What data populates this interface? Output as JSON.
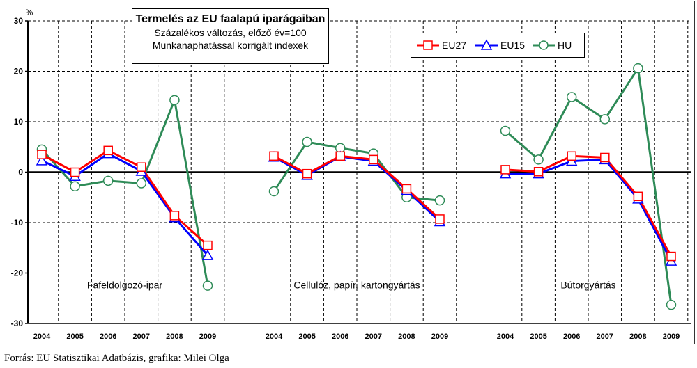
{
  "chart_data": {
    "type": "line",
    "title": "Termelés az EU faalapú iparágaiban",
    "subtitle": [
      "Százalékos változás, előző év=100",
      "Munkanaphatással korrigált indexek"
    ],
    "ylabel": "%",
    "ylim": [
      -30,
      30
    ],
    "yticks": [
      30,
      20,
      10,
      0,
      -10,
      -20,
      -30
    ],
    "grid": true,
    "legend_position": "top-right",
    "groups": [
      {
        "label": "Fafeldolgozó-ipar",
        "years": [
          "2004",
          "2005",
          "2006",
          "2007",
          "2008",
          "2009"
        ],
        "series": [
          {
            "name": "EU27",
            "color": "#ff0000",
            "marker": "square",
            "values": [
              3.5,
              0.0,
              4.3,
              1.0,
              -8.6,
              -14.5
            ]
          },
          {
            "name": "EU15",
            "color": "#0000ff",
            "marker": "triangle",
            "values": [
              2.3,
              -0.8,
              3.7,
              0.2,
              -9.0,
              -16.5
            ]
          },
          {
            "name": "HU",
            "color": "#2e8b57",
            "marker": "circle",
            "values": [
              4.5,
              -2.8,
              -1.7,
              -2.2,
              14.3,
              -22.5
            ]
          }
        ]
      },
      {
        "label": "Cellulóz, papír, kartongyártás",
        "years": [
          "2004",
          "2005",
          "2006",
          "2007",
          "2008",
          "2009"
        ],
        "series": [
          {
            "name": "EU27",
            "color": "#ff0000",
            "marker": "square",
            "values": [
              3.2,
              -0.3,
              3.2,
              2.5,
              -3.3,
              -9.3
            ]
          },
          {
            "name": "EU15",
            "color": "#0000ff",
            "marker": "triangle",
            "values": [
              3.0,
              -0.6,
              3.1,
              2.2,
              -3.6,
              -9.8
            ]
          },
          {
            "name": "HU",
            "color": "#2e8b57",
            "marker": "circle",
            "values": [
              -3.8,
              6.0,
              4.8,
              3.7,
              -5.0,
              -5.6
            ]
          }
        ]
      },
      {
        "label": "Bútorgyártás",
        "years": [
          "2004",
          "2005",
          "2006",
          "2007",
          "2008",
          "2009"
        ],
        "series": [
          {
            "name": "EU27",
            "color": "#ff0000",
            "marker": "square",
            "values": [
              0.5,
              0.1,
              3.2,
              2.9,
              -4.8,
              -16.7
            ]
          },
          {
            "name": "EU15",
            "color": "#0000ff",
            "marker": "triangle",
            "values": [
              -0.3,
              -0.3,
              2.2,
              2.5,
              -5.3,
              -17.6
            ]
          },
          {
            "name": "HU",
            "color": "#2e8b57",
            "marker": "circle",
            "values": [
              8.2,
              2.5,
              14.9,
              10.5,
              20.6,
              -26.3
            ]
          }
        ]
      }
    ]
  },
  "legend": {
    "items": [
      {
        "label": "EU27",
        "color": "#ff0000",
        "marker": "square"
      },
      {
        "label": "EU15",
        "color": "#0000ff",
        "marker": "triangle"
      },
      {
        "label": "HU",
        "color": "#2e8b57",
        "marker": "circle"
      }
    ]
  },
  "title_box": {
    "main": "Termelés az EU faalapú iparágaiban",
    "line1": "Százalékos változás, előző év=100",
    "line2": "Munkanaphatással korrigált indexek"
  },
  "footer": {
    "source": "Forrás: EU Statisztikai Adatbázis, grafika: Milei Olga"
  }
}
